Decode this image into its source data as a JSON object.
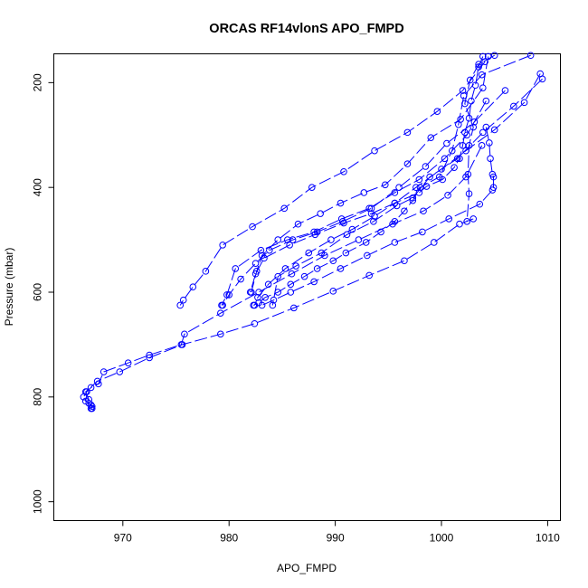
{
  "chart_data": {
    "type": "line",
    "title": "ORCAS RF14vlonS APO_FMPD",
    "xlabel": "APO_FMPD",
    "ylabel": "Pressure (mbar)",
    "xlim": [
      963.5,
      1011.2
    ],
    "ylim": [
      1036,
      145
    ],
    "y_inverted": true,
    "x_ticks": [
      "970",
      "980",
      "990",
      "1000",
      "1010"
    ],
    "y_ticks": [
      "200",
      "400",
      "600",
      "800",
      "1000"
    ],
    "grid": false,
    "legend": "none",
    "marker": "open-circle",
    "line_style": "long-dash",
    "color": "#0000ff",
    "series": [
      {
        "x": [
          1008.4,
          1003.8,
          1002.1,
          1001.6,
          1001.0,
          999.8,
          998.0,
          997.3,
          996.5,
          995.6,
          994.3,
          992.9,
          991.0,
          989.8,
          988.3,
          987.1,
          985.8,
          984.6,
          983.4,
          982.8,
          982.3
        ],
        "y": [
          148,
          185,
          225,
          280,
          330,
          380,
          400,
          425,
          445,
          465,
          485,
          505,
          525,
          540,
          555,
          570,
          585,
          600,
          610,
          620,
          625
        ]
      },
      {
        "x": [
          1009.3,
          1007.8,
          1005.0,
          1002.3,
          1000.0,
          997.6,
          995.6,
          993.4,
          990.8,
          988.1,
          985.7,
          983.3,
          982.5,
          982.0
        ],
        "y": [
          183,
          238,
          290,
          330,
          365,
          400,
          430,
          450,
          468,
          490,
          510,
          535,
          565,
          600
        ]
      },
      {
        "x": [
          1009.5,
          1006.8,
          1003.9,
          1001.5,
          998.9,
          997.3,
          995.8,
          993.6,
          991.1,
          988.7,
          986.3,
          984.6,
          984.1
        ],
        "y": [
          193,
          245,
          295,
          345,
          380,
          420,
          435,
          465,
          490,
          525,
          550,
          570,
          625
        ]
      },
      {
        "x": [
          1005.0,
          1003.5,
          1002.7,
          1002.2,
          1003.0,
          1002.6,
          1002.5,
          1002.6,
          1002.4
        ],
        "y": [
          148,
          165,
          195,
          240,
          285,
          320,
          375,
          412,
          465
        ]
      },
      {
        "x": [
          1003.9,
          1003.5,
          1003.2,
          1002.8,
          1002.6,
          1002.2,
          1002.0,
          1001.7,
          1001.2,
          1000.1,
          998.6,
          997.9,
          995.6,
          993.7,
          991.6,
          989.6,
          987.5,
          985.3,
          983.7,
          982.7,
          982.4
        ],
        "y": [
          150,
          170,
          205,
          235,
          268,
          295,
          320,
          345,
          362,
          385,
          398,
          410,
          430,
          455,
          480,
          500,
          525,
          555,
          585,
          610,
          625
        ]
      },
      {
        "x": [
          1004.2,
          1004.5,
          1004.6,
          1004.8,
          1004.9,
          1004.9,
          1004.8,
          1003.6,
          1000.7,
          998.2,
          995.6,
          993.0,
          990.5,
          988.0,
          985.8,
          984.2,
          983.1
        ],
        "y": [
          285,
          315,
          345,
          375,
          380,
          400,
          405,
          432,
          460,
          485,
          505,
          530,
          555,
          580,
          600,
          615,
          625
        ]
      },
      {
        "x": [
          1004.4,
          1003.9,
          1001.8,
          999.0,
          996.8,
          994.7,
          992.7,
          990.5,
          988.6,
          986.5,
          984.6,
          983.1,
          982.6,
          982.1
        ],
        "y": [
          150,
          210,
          270,
          305,
          355,
          395,
          410,
          430,
          450,
          470,
          500,
          530,
          560,
          600
        ]
      },
      {
        "x": [
          1006.0,
          1003.1,
          1000.5,
          998.5,
          996.0,
          993.4,
          990.7,
          988.3,
          986.0,
          983.8,
          982.5,
          981.1,
          980.0,
          979.4
        ],
        "y": [
          215,
          275,
          316,
          360,
          400,
          440,
          465,
          485,
          500,
          520,
          545,
          575,
          605,
          625
        ]
      },
      {
        "x": [
          1004.2,
          1002.4,
          1000.3,
          997.9,
          995.6,
          993.2,
          990.6,
          988.0,
          985.5,
          983.0,
          980.6,
          979.8,
          979.3
        ],
        "y": [
          235,
          300,
          345,
          385,
          410,
          440,
          460,
          485,
          500,
          520,
          555,
          605,
          625
        ]
      },
      {
        "x": [
          1004.1,
          1002.0,
          999.6,
          996.8,
          993.7,
          990.8,
          987.8,
          985.2,
          982.2,
          979.4,
          977.8,
          976.6,
          975.7,
          975.4
        ],
        "y": [
          160,
          215,
          255,
          295,
          330,
          370,
          400,
          440,
          475,
          510,
          560,
          590,
          615,
          625
        ]
      },
      {
        "x": [
          1003.8,
          1002.3,
          1000.6,
          998.3,
          995.4,
          992.2,
          989.0,
          985.9,
          982.8,
          979.2,
          975.8,
          975.5,
          972.5,
          970.5,
          968.2,
          967.7,
          967.0,
          966.6,
          966.3,
          966.5,
          966.8,
          967.1,
          967.0
        ],
        "y": [
          320,
          380,
          415,
          445,
          470,
          500,
          530,
          565,
          600,
          640,
          680,
          700,
          720,
          735,
          752,
          775,
          782,
          790,
          800,
          808,
          812,
          818,
          822
        ]
      },
      {
        "x": [
          1003.0,
          1001.7,
          999.3,
          996.5,
          993.2,
          989.8,
          986.1,
          982.4,
          979.2,
          975.6,
          972.5,
          969.7,
          967.6,
          966.5,
          966.8,
          967.0,
          967.1
        ],
        "y": [
          460,
          470,
          505,
          540,
          568,
          598,
          630,
          660,
          680,
          700,
          725,
          752,
          770,
          790,
          805,
          815,
          822
        ]
      }
    ]
  }
}
